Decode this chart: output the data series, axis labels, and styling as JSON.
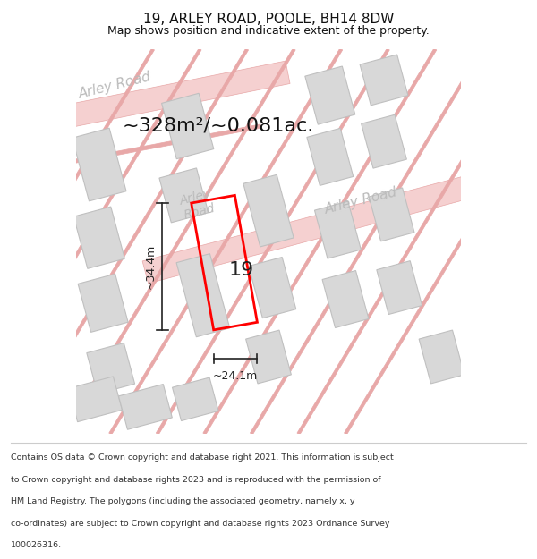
{
  "title": "19, ARLEY ROAD, POOLE, BH14 8DW",
  "subtitle": "Map shows position and indicative extent of the property.",
  "area_label": "~328m²/~0.081ac.",
  "dim_h": "~34.4m",
  "dim_w": "~24.1m",
  "number_label": "19",
  "footer_lines": [
    "Contains OS data © Crown copyright and database right 2021. This information is subject",
    "to Crown copyright and database rights 2023 and is reproduced with the permission of",
    "HM Land Registry. The polygons (including the associated geometry, namely x, y",
    "co-ordinates) are subject to Crown copyright and database rights 2023 Ordnance Survey",
    "100026316."
  ],
  "bg_color": "#ffffff",
  "road_color": "#f5d0d0",
  "road_line_color": "#e8a8a8",
  "building_fill": "#d8d8d8",
  "building_edge": "#c0c0c0",
  "plot_color": "#ff0000",
  "dim_line_color": "#222222",
  "road_text_color": "#bbbbbb",
  "title_color": "#111111"
}
